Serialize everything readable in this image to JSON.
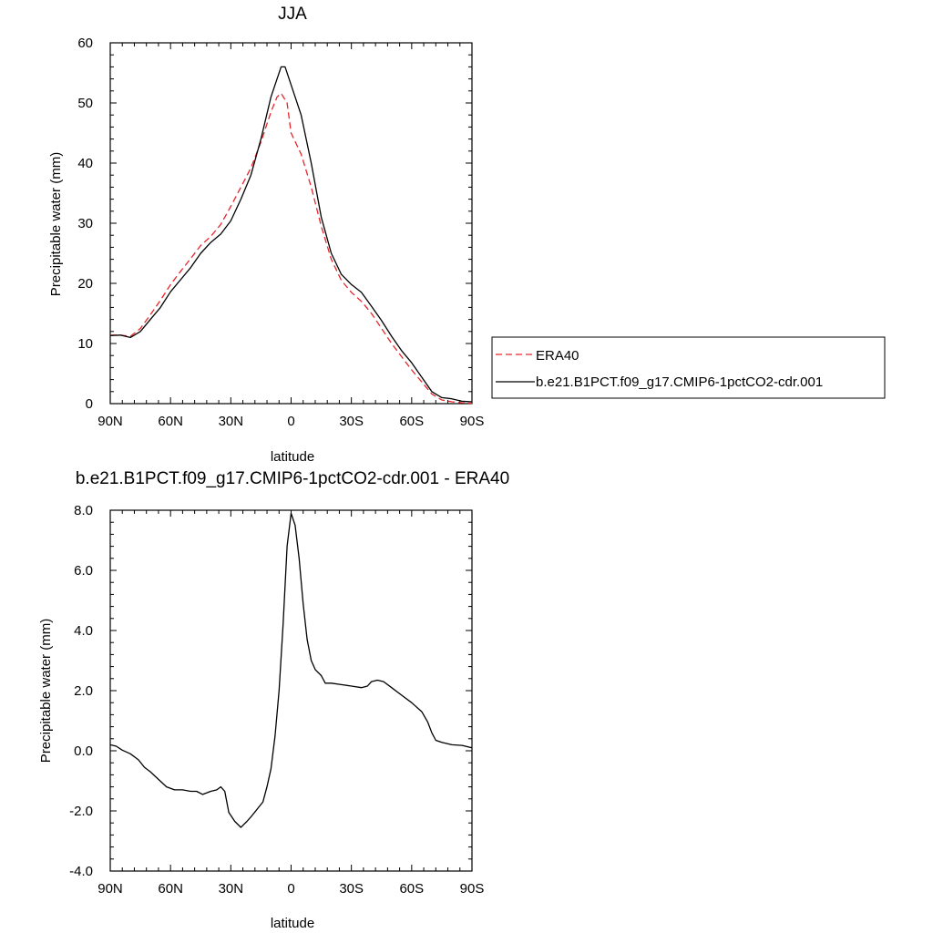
{
  "chart_data": [
    {
      "type": "line",
      "title": "JJA",
      "xlabel": "latitude",
      "ylabel": "Precipitable water (mm)",
      "x_ticks": [
        {
          "value": 90,
          "label": "90N"
        },
        {
          "value": 60,
          "label": "60N"
        },
        {
          "value": 30,
          "label": "30N"
        },
        {
          "value": 0,
          "label": "0"
        },
        {
          "value": -30,
          "label": "30S"
        },
        {
          "value": -60,
          "label": "60S"
        },
        {
          "value": -90,
          "label": "90S"
        }
      ],
      "y_ticks": [
        {
          "value": 0,
          "label": "0"
        },
        {
          "value": 10,
          "label": "10"
        },
        {
          "value": 20,
          "label": "20"
        },
        {
          "value": 30,
          "label": "30"
        },
        {
          "value": 40,
          "label": "40"
        },
        {
          "value": 50,
          "label": "50"
        },
        {
          "value": 60,
          "label": "60"
        }
      ],
      "xlim": [
        90,
        -90
      ],
      "ylim": [
        0,
        60
      ],
      "grid": false,
      "legend_position": "right",
      "series": [
        {
          "name": "ERA40",
          "color": "#e8252a",
          "dash": "dashed",
          "x": [
            90,
            85,
            80,
            75,
            70,
            65,
            60,
            55,
            50,
            45,
            40,
            35,
            30,
            25,
            20,
            15,
            10,
            7,
            5,
            2,
            0,
            -5,
            -10,
            -15,
            -20,
            -25,
            -30,
            -35,
            -40,
            -45,
            -50,
            -55,
            -60,
            -65,
            -70,
            -75,
            -80,
            -85,
            -90
          ],
          "values": [
            11.4,
            11.4,
            11.2,
            12.5,
            14.8,
            17.2,
            19.8,
            22.0,
            24.1,
            26.3,
            27.8,
            29.8,
            32.8,
            36.0,
            39.2,
            43.5,
            48.5,
            51.0,
            51.6,
            50.0,
            45.0,
            41.5,
            36.0,
            29.5,
            24.0,
            20.5,
            18.5,
            17.0,
            15.0,
            12.5,
            10.0,
            7.8,
            5.6,
            3.6,
            1.6,
            0.6,
            0.3,
            0.15,
            0.05
          ]
        },
        {
          "name": "b.e21.B1PCT.f09_g17.CMIP6-1pctCO2-cdr.001",
          "color": "#000000",
          "dash": "solid",
          "x": [
            90,
            85,
            80,
            75,
            70,
            65,
            60,
            55,
            50,
            45,
            40,
            35,
            30,
            25,
            20,
            15,
            10,
            7,
            5,
            3,
            0,
            -5,
            -10,
            -15,
            -20,
            -25,
            -30,
            -35,
            -40,
            -45,
            -50,
            -55,
            -60,
            -65,
            -70,
            -75,
            -80,
            -85,
            -90
          ],
          "values": [
            11.3,
            11.4,
            11.0,
            12.0,
            14.0,
            16.0,
            18.6,
            20.6,
            22.6,
            25.0,
            26.8,
            28.2,
            30.4,
            34.0,
            38.0,
            44.0,
            51.0,
            54.0,
            56.0,
            56.0,
            53.0,
            48.0,
            40.0,
            31.0,
            25.0,
            21.5,
            19.8,
            18.5,
            16.2,
            13.8,
            11.2,
            8.8,
            6.8,
            4.4,
            2.0,
            1.0,
            0.8,
            0.4,
            0.3
          ]
        }
      ]
    },
    {
      "type": "line",
      "title": "b.e21.B1PCT.f09_g17.CMIP6-1pctCO2-cdr.001 - ERA40",
      "xlabel": "latitude",
      "ylabel": "Precipitable water (mm)",
      "x_ticks": [
        {
          "value": 90,
          "label": "90N"
        },
        {
          "value": 60,
          "label": "60N"
        },
        {
          "value": 30,
          "label": "30N"
        },
        {
          "value": 0,
          "label": "0"
        },
        {
          "value": -30,
          "label": "30S"
        },
        {
          "value": -60,
          "label": "60S"
        },
        {
          "value": -90,
          "label": "90S"
        }
      ],
      "y_ticks": [
        {
          "value": -4,
          "label": "-4.0"
        },
        {
          "value": -2,
          "label": "-2.0"
        },
        {
          "value": 0,
          "label": "0.0"
        },
        {
          "value": 2,
          "label": "2.0"
        },
        {
          "value": 4,
          "label": "4.0"
        },
        {
          "value": 6,
          "label": "6.0"
        },
        {
          "value": 8,
          "label": "8.0"
        }
      ],
      "xlim": [
        90,
        -90
      ],
      "ylim": [
        -4,
        8
      ],
      "grid": false,
      "series": [
        {
          "color": "#000000",
          "dash": "solid",
          "x": [
            90,
            87,
            84,
            80,
            76,
            73,
            70,
            66,
            62,
            58,
            54,
            50,
            47,
            44,
            40,
            37,
            35,
            33,
            31,
            28,
            25,
            22,
            20,
            17,
            14,
            12,
            10,
            8,
            6,
            4,
            2,
            0,
            -2,
            -4,
            -6,
            -8,
            -10,
            -12,
            -15,
            -17,
            -20,
            -25,
            -30,
            -35,
            -38,
            -40,
            -43,
            -46,
            -50,
            -55,
            -60,
            -65,
            -68,
            -70,
            -72,
            -75,
            -80,
            -85,
            -90
          ],
          "values": [
            0.2,
            0.15,
            0.02,
            -0.1,
            -0.3,
            -0.55,
            -0.7,
            -0.95,
            -1.2,
            -1.3,
            -1.3,
            -1.35,
            -1.35,
            -1.45,
            -1.35,
            -1.3,
            -1.2,
            -1.35,
            -2.05,
            -2.35,
            -2.55,
            -2.35,
            -2.2,
            -1.95,
            -1.7,
            -1.2,
            -0.6,
            0.5,
            2.0,
            4.2,
            6.8,
            7.9,
            7.5,
            6.4,
            4.9,
            3.7,
            3.0,
            2.7,
            2.5,
            2.25,
            2.25,
            2.2,
            2.15,
            2.1,
            2.15,
            2.3,
            2.35,
            2.3,
            2.1,
            1.85,
            1.6,
            1.3,
            0.95,
            0.6,
            0.35,
            0.28,
            0.2,
            0.18,
            0.1
          ]
        }
      ]
    }
  ]
}
